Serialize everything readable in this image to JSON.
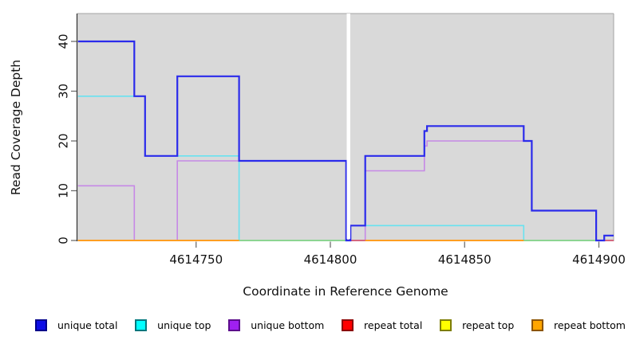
{
  "chart_data": {
    "type": "line",
    "subtype": "step-coverage",
    "title": "",
    "xlabel": "Coordinate in Reference Genome",
    "ylabel": "Read Coverage Depth",
    "x_ticks": [
      4614750,
      4614800,
      4614850,
      4614900
    ],
    "y_ticks": [
      0,
      10,
      20,
      30,
      40
    ],
    "xlim": [
      4614705.8,
      4614905.5
    ],
    "ylim": [
      0,
      45.6
    ],
    "grid": false,
    "panel_bg": "#d9d9d9",
    "panel_border": "#a3a3a3",
    "axis_color": "#2f2f2f",
    "tick_color": "#6e6e6e",
    "gap_band": {
      "from": 4614806.1,
      "to": 4614807.4,
      "color": "#ffffff"
    },
    "series": [
      {
        "name": "unique total",
        "color": "#2b2beb",
        "width": 2.2,
        "steps": [
          [
            4614706,
            40
          ],
          [
            4614727,
            29
          ],
          [
            4614731,
            17
          ],
          [
            4614743,
            33
          ],
          [
            4614766,
            16
          ],
          [
            4614805.9,
            0
          ],
          [
            4614807.5,
            3
          ],
          [
            4614813,
            17
          ],
          [
            4614835,
            22
          ],
          [
            4614836,
            23
          ],
          [
            4614872,
            20
          ],
          [
            4614875,
            6
          ],
          [
            4614899,
            0
          ],
          [
            4614902,
            1
          ]
        ]
      },
      {
        "name": "unique top",
        "color": "#68e2f0",
        "width": 1.6,
        "steps": [
          [
            4614706,
            29
          ],
          [
            4614731,
            17
          ],
          [
            4614766,
            0
          ],
          [
            4614807.5,
            3
          ],
          [
            4614872,
            0
          ],
          [
            4614902,
            1
          ]
        ]
      },
      {
        "name": "unique bottom",
        "color": "#c689e6",
        "width": 1.6,
        "steps": [
          [
            4614706,
            11
          ],
          [
            4614727,
            0
          ],
          [
            4614743,
            16
          ],
          [
            4614805.9,
            0
          ],
          [
            4614813,
            14
          ],
          [
            4614835,
            19
          ],
          [
            4614836,
            20
          ],
          [
            4614875,
            6
          ],
          [
            4614899,
            0
          ]
        ]
      },
      {
        "name": "repeat total",
        "color": "#cc1111",
        "width": 1.3,
        "steps": [
          [
            4614706,
            0
          ]
        ]
      },
      {
        "name": "repeat top",
        "color": "#f5e800",
        "width": 1.3,
        "steps": [
          [
            4614706,
            0
          ]
        ]
      },
      {
        "name": "repeat bottom",
        "color": "#ff9e22",
        "width": 2,
        "steps": [
          [
            4614706,
            0
          ]
        ]
      }
    ],
    "zero_line_overlaps": [
      {
        "from": 4614766,
        "to": 4614805.9,
        "color": "#8cd492"
      },
      {
        "from": 4614872,
        "to": 4614899,
        "color": "#8cd492"
      },
      {
        "from": 4614805.9,
        "to": 4614813,
        "color": "#d3687f"
      },
      {
        "from": 4614902,
        "to": 4614905.5,
        "color": "#d3687f"
      }
    ],
    "legend": [
      {
        "label": "unique total",
        "fill": "#0d0de6",
        "border": "#00008b"
      },
      {
        "label": "unique top",
        "fill": "#00ffff",
        "border": "#00777d"
      },
      {
        "label": "unique bottom",
        "fill": "#a020f0",
        "border": "#5c0d8c"
      },
      {
        "label": "repeat total",
        "fill": "#ff0000",
        "border": "#8b0000"
      },
      {
        "label": "repeat top",
        "fill": "#ffff00",
        "border": "#7d7d00"
      },
      {
        "label": "repeat bottom",
        "fill": "#ffa500",
        "border": "#8c5400"
      }
    ]
  }
}
